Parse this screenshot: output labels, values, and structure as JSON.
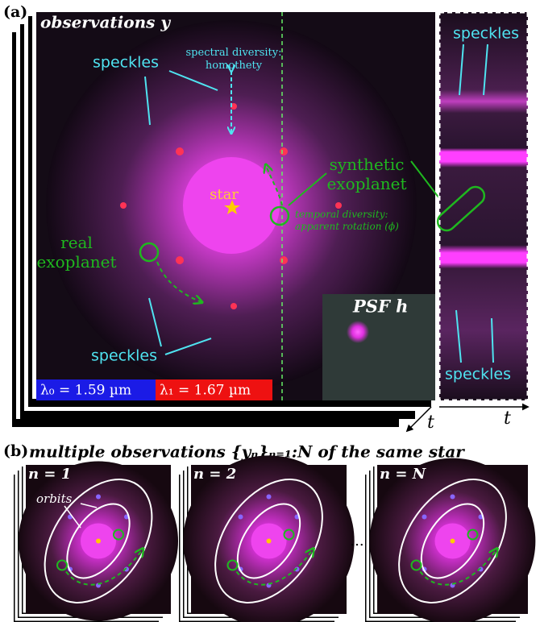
{
  "panel_a": {
    "label": "(a)",
    "title": "observations y",
    "speckles_top_left": "speckles",
    "speckles_bottom_left": "speckles",
    "speckles_strip_top": "speckles",
    "speckles_strip_bottom": "speckles",
    "spectral_diversity": [
      "spectral diversity:",
      "homothety"
    ],
    "star": "star",
    "synthetic_exoplanet": [
      "synthetic",
      "exoplanet"
    ],
    "temporal_diversity": [
      "temporal diversity:",
      "apparent rotation (ϕ)"
    ],
    "real_exoplanet": [
      "real",
      "exoplanet"
    ],
    "psf": "PSF h",
    "lambda0": "λ₀ = 1.59 µm",
    "lambda1": "λ₁ = 1.67 µm",
    "time_axis_stack": "t",
    "time_axis_strip": "t"
  },
  "panel_b": {
    "label": "(b)",
    "title": "multiple observations {yₙ}ₙ₌₁:N of the same star",
    "frames": [
      "n = 1",
      "n = 2",
      "n = N"
    ],
    "orbits": "orbits",
    "ellipsis": "..."
  }
}
